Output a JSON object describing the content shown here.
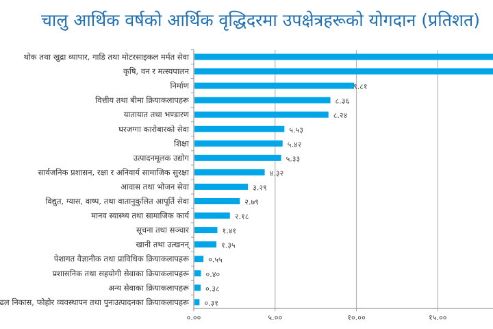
{
  "chart_data": {
    "type": "bar",
    "orientation": "horizontal",
    "title": "चालु आर्थिक वर्षको आर्थिक वृद्धिदरमा उपक्षेत्रहरूको योगदान (प्रतिशत)",
    "bar_color": "#00a6e8",
    "title_color": "#1f6fb2",
    "grid": true,
    "xlim": [
      0,
      20
    ],
    "x_ticks": [
      0,
      5,
      10,
      15
    ],
    "x_tick_labels": [
      "०.००",
      "५.००",
      "१०.००",
      "१५.००"
    ],
    "categories": [
      "थोक तथा खुद्रा व्यापार, गाडि तथा मोटरसाइकल मर्मत सेवा",
      "कृषि, वन र मत्स्यपालन",
      "निर्माण",
      "वित्तीय तथा बीमा क्रियाकलापहरू",
      "यातायात तथा भण्डारण",
      "घरजग्गा कारोबारको सेवा",
      "शिक्षा",
      "उत्पादनमूलक उद्योग",
      "सार्वजनिक प्रशासन, रक्षा र अनिवार्य सामाजिक सुरक्षा",
      "आवास तथा भोजन सेवा",
      "विद्युत, ग्यास, वाष्प, तथा वातानुकुलित आपूर्ति सेवा",
      "मानव स्वास्थ्य तथा सामाजिक कार्य",
      "सूचना तथा सञ्चार",
      "खानी तथा उत्खनन्",
      "पेशागत वैज्ञानीक तथा प्राविधिक क्रियाकलापहरू",
      "प्रशासनिक तथा सहयोगी सेवाका क्रियाकलापहरू",
      "अन्य सेवाका क्रियाकलापहरू",
      "ढल निकास, फोहोर व्यवस्थापन तथा पुनःउत्पादनका क्रियाकलापहरू"
    ],
    "values": [
      null,
      null,
      9.81,
      8.36,
      8.24,
      5.53,
      5.42,
      5.33,
      4.32,
      3.29,
      2.79,
      2.18,
      1.41,
      1.35,
      0.55,
      0.4,
      0.38,
      0.31
    ],
    "value_labels": [
      "",
      "",
      "९.८१",
      "८.३६",
      "८.२४",
      "५.५३",
      "५.४२",
      "५.३३",
      "४.३२",
      "३.२९",
      "२.७९",
      "२.१८",
      "१.४१",
      "१.३५",
      "०.५५",
      "०.४०",
      "०.३८",
      "०.३१"
    ]
  }
}
